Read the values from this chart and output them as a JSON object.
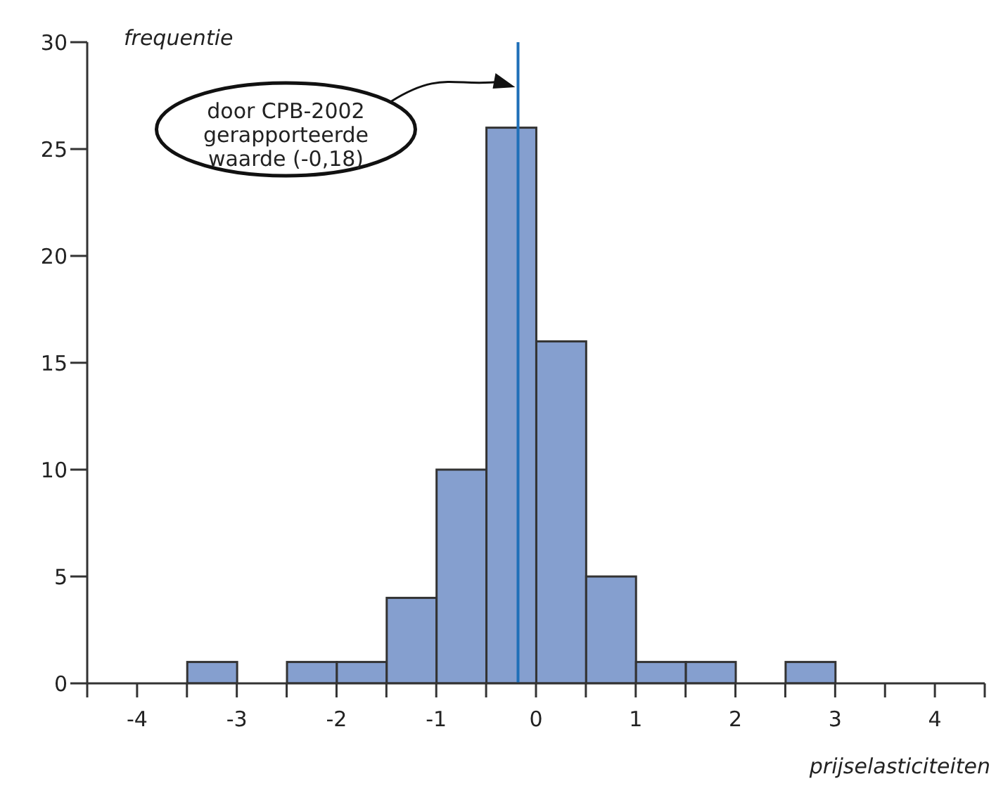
{
  "chart_data": {
    "type": "histogram",
    "xlabel": "prijselasticiteiten",
    "ylabel": "frequentie",
    "bins": [
      -3.5,
      -3,
      -2.5,
      -2,
      -1.5,
      -1,
      -0.5,
      0,
      0.5,
      1,
      1.5,
      2,
      2.5,
      3
    ],
    "values": [
      1,
      0,
      1,
      1,
      4,
      10,
      26,
      16,
      5,
      1,
      1,
      0,
      1
    ],
    "color": "#859fcf",
    "xlim": [
      -4.5,
      4.5
    ],
    "xticks": [
      {
        "value": -4.5,
        "label": null
      },
      -4,
      {
        "value": -3.5,
        "label": null
      },
      -3,
      {
        "value": -2.5,
        "label": null
      },
      -2,
      {
        "value": -1.5,
        "label": null
      },
      -1,
      {
        "value": -0.5,
        "label": null
      },
      0,
      {
        "value": 0.5,
        "label": null
      },
      1,
      {
        "value": 1.5,
        "label": null
      },
      2,
      {
        "value": 2.5,
        "label": null
      },
      3,
      {
        "value": 3.5,
        "label": null
      },
      4,
      {
        "value": 4.5,
        "label": null
      }
    ],
    "ylim": [
      0,
      30
    ],
    "yticks": [
      0,
      5,
      10,
      15,
      20,
      25,
      30
    ],
    "annotations": [
      "door CPB-2002\ngerapporteerde\nwaarde (-0,18)"
    ],
    "ref_lines": [
      {
        "axis": "x",
        "value": -0.18,
        "color": "#1f6fb8"
      }
    ]
  }
}
